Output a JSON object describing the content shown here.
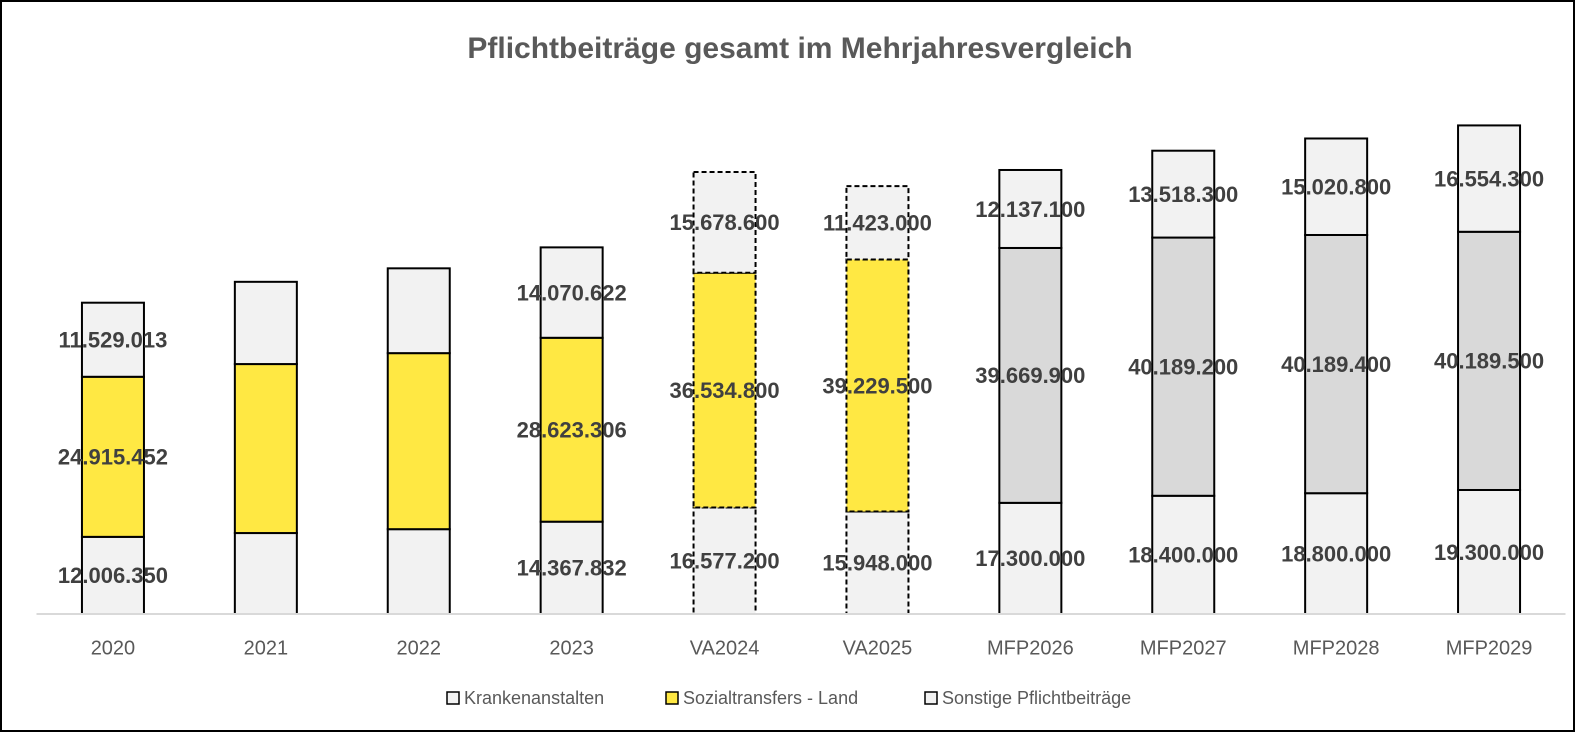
{
  "chart_data": {
    "type": "stacked_bar",
    "title": "Pflichtbeiträge gesamt  im Mehrjahresvergleich",
    "categories": [
      "2020",
      "2021",
      "2022",
      "2023",
      "VA2024",
      "VA2025",
      "MFP2026",
      "MFP2027",
      "MFP2028",
      "MFP2029"
    ],
    "series": [
      {
        "name": "Krankenanstalten",
        "color": "#f2f2f2",
        "values": [
          12006350,
          12600000,
          13200000,
          14367832,
          16577200,
          15948000,
          17300000,
          18400000,
          18800000,
          19300000
        ],
        "value_labels": [
          "12.006.350",
          null,
          null,
          "14.367.832",
          "16.577.200",
          "15.948.000",
          "17.300.000",
          "18.400.000",
          "18.800.000",
          "19.300.000"
        ]
      },
      {
        "name": "Sozialtransfers - Land",
        "color": "#ffe843",
        "point_colors": [
          "#ffe843",
          "#ffe843",
          "#ffe843",
          "#ffe843",
          "#ffe843",
          "#ffe843",
          "#d9d9d9",
          "#d9d9d9",
          "#d9d9d9",
          "#d9d9d9"
        ],
        "values": [
          24915452,
          26300000,
          27400000,
          28623306,
          36534800,
          39229500,
          39669900,
          40189200,
          40189400,
          40189500
        ],
        "value_labels": [
          "24.915.452",
          null,
          null,
          "28.623.306",
          "36.534.800",
          "39.229.500",
          "39.669.900",
          "40.189.200",
          "40.189.400",
          "40.189.500"
        ]
      },
      {
        "name": "Sonstige Pflichtbeiträge",
        "color": "#f2f2f2",
        "values": [
          11529013,
          12800000,
          13200000,
          14070622,
          15678600,
          11423000,
          12137100,
          13518300,
          15020800,
          16554300
        ],
        "value_labels": [
          "11.529.013",
          null,
          null,
          "14.070.622",
          "15.678.600",
          "11.423.000",
          "12.137.100",
          "13.518.300",
          "15.020.800",
          "16.554.300"
        ]
      }
    ],
    "dashed_outline": [
      false,
      false,
      false,
      false,
      true,
      true,
      false,
      false,
      false,
      false
    ],
    "ylim": [
      0,
      80000000
    ],
    "legend": "bottom"
  }
}
